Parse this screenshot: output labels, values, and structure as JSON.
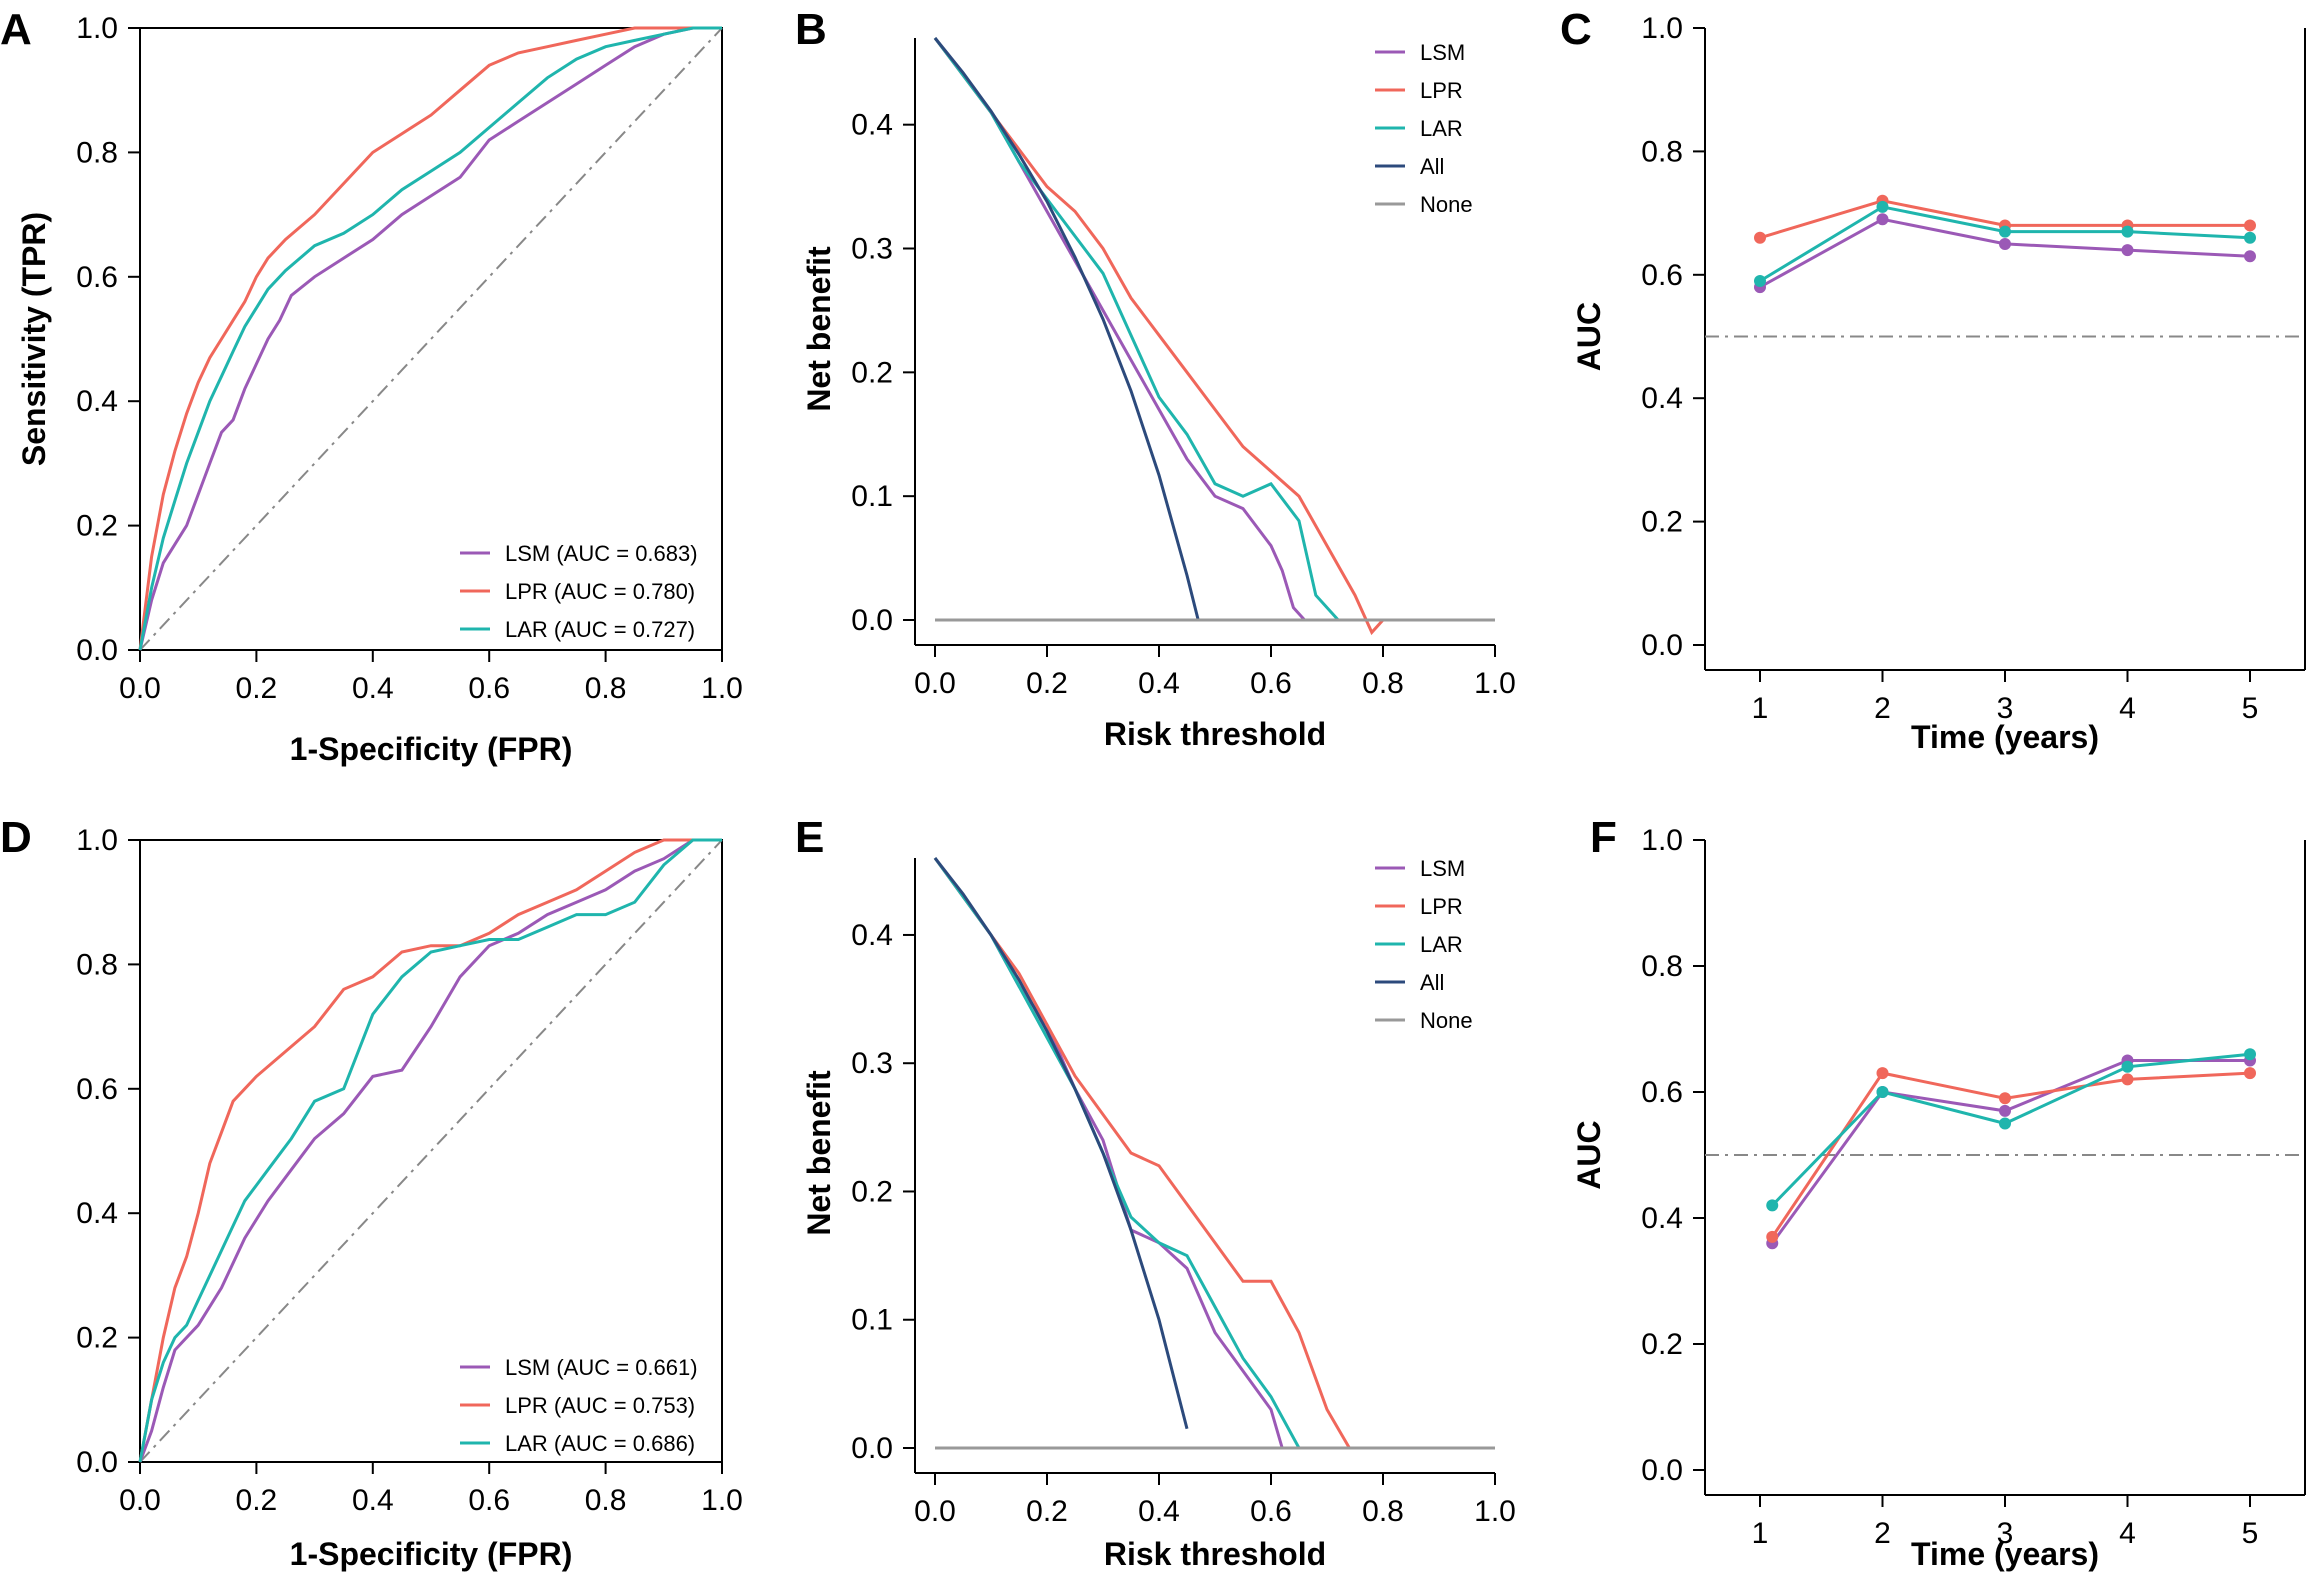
{
  "colors": {
    "LSM": "#9b59b6",
    "LPR": "#f0675b",
    "LAR": "#1fb5ad",
    "All": "#2c4a7c",
    "None": "#999999",
    "reference": "#888888"
  },
  "chart_data": [
    {
      "panel": "A",
      "type": "line",
      "subtype": "roc",
      "xlabel": "1-Specificity (FPR)",
      "ylabel": "Sensitivity (TPR)",
      "xlim": [
        0,
        1
      ],
      "ylim": [
        0,
        1
      ],
      "xticks": [
        "0.0",
        "0.2",
        "0.4",
        "0.6",
        "0.8",
        "1.0"
      ],
      "yticks": [
        "0.0",
        "0.2",
        "0.4",
        "0.6",
        "0.8",
        "1.0"
      ],
      "legend_position": "bottom-right",
      "reference_line": "diagonal",
      "series": [
        {
          "key": "LSM",
          "name": "LSM (AUC = 0.683)",
          "x": [
            0,
            0.02,
            0.04,
            0.06,
            0.08,
            0.1,
            0.12,
            0.14,
            0.16,
            0.18,
            0.2,
            0.22,
            0.24,
            0.26,
            0.3,
            0.35,
            0.4,
            0.45,
            0.5,
            0.55,
            0.6,
            0.65,
            0.7,
            0.75,
            0.8,
            0.85,
            0.9,
            0.95,
            1.0
          ],
          "y": [
            0,
            0.08,
            0.14,
            0.17,
            0.2,
            0.25,
            0.3,
            0.35,
            0.37,
            0.42,
            0.46,
            0.5,
            0.53,
            0.57,
            0.6,
            0.63,
            0.66,
            0.7,
            0.73,
            0.76,
            0.82,
            0.85,
            0.88,
            0.91,
            0.94,
            0.97,
            0.99,
            1.0,
            1.0
          ]
        },
        {
          "key": "LPR",
          "name": "LPR (AUC = 0.780)",
          "x": [
            0,
            0.02,
            0.04,
            0.06,
            0.08,
            0.1,
            0.12,
            0.14,
            0.16,
            0.18,
            0.2,
            0.22,
            0.25,
            0.3,
            0.35,
            0.4,
            0.45,
            0.5,
            0.55,
            0.6,
            0.65,
            0.7,
            0.75,
            0.8,
            0.85,
            0.9,
            0.95,
            1.0
          ],
          "y": [
            0,
            0.15,
            0.25,
            0.32,
            0.38,
            0.43,
            0.47,
            0.5,
            0.53,
            0.56,
            0.6,
            0.63,
            0.66,
            0.7,
            0.75,
            0.8,
            0.83,
            0.86,
            0.9,
            0.94,
            0.96,
            0.97,
            0.98,
            0.99,
            1.0,
            1.0,
            1.0,
            1.0
          ]
        },
        {
          "key": "LAR",
          "name": "LAR (AUC = 0.727)",
          "x": [
            0,
            0.02,
            0.04,
            0.06,
            0.08,
            0.1,
            0.12,
            0.14,
            0.16,
            0.18,
            0.2,
            0.22,
            0.25,
            0.3,
            0.35,
            0.4,
            0.45,
            0.5,
            0.55,
            0.6,
            0.65,
            0.7,
            0.75,
            0.8,
            0.85,
            0.9,
            0.95,
            1.0
          ],
          "y": [
            0,
            0.1,
            0.18,
            0.24,
            0.3,
            0.35,
            0.4,
            0.44,
            0.48,
            0.52,
            0.55,
            0.58,
            0.61,
            0.65,
            0.67,
            0.7,
            0.74,
            0.77,
            0.8,
            0.84,
            0.88,
            0.92,
            0.95,
            0.97,
            0.98,
            0.99,
            1.0,
            1.0
          ]
        }
      ]
    },
    {
      "panel": "B",
      "type": "line",
      "subtype": "decision-curve",
      "xlabel": "Risk threshold",
      "ylabel": "Net benefit",
      "xlim": [
        0,
        1
      ],
      "ylim": [
        0,
        0.47
      ],
      "xticks": [
        "0.0",
        "0.2",
        "0.4",
        "0.6",
        "0.8",
        "1.0"
      ],
      "yticks": [
        "0.0",
        "0.1",
        "0.2",
        "0.3",
        "0.4"
      ],
      "legend_position": "top-right",
      "series": [
        {
          "key": "LSM",
          "name": "LSM",
          "x": [
            0,
            0.05,
            0.1,
            0.15,
            0.2,
            0.25,
            0.3,
            0.35,
            0.4,
            0.45,
            0.5,
            0.55,
            0.6,
            0.62,
            0.64,
            0.66
          ],
          "y": [
            0.47,
            0.44,
            0.41,
            0.37,
            0.33,
            0.29,
            0.25,
            0.21,
            0.17,
            0.13,
            0.1,
            0.09,
            0.06,
            0.04,
            0.01,
            0.0
          ]
        },
        {
          "key": "LPR",
          "name": "LPR",
          "x": [
            0,
            0.05,
            0.1,
            0.15,
            0.2,
            0.25,
            0.3,
            0.35,
            0.4,
            0.45,
            0.5,
            0.55,
            0.6,
            0.65,
            0.7,
            0.75,
            0.78,
            0.8
          ],
          "y": [
            0.47,
            0.44,
            0.41,
            0.38,
            0.35,
            0.33,
            0.3,
            0.26,
            0.23,
            0.2,
            0.17,
            0.14,
            0.12,
            0.1,
            0.06,
            0.02,
            -0.01,
            0.0
          ]
        },
        {
          "key": "LAR",
          "name": "LAR",
          "x": [
            0,
            0.05,
            0.1,
            0.15,
            0.2,
            0.25,
            0.3,
            0.35,
            0.4,
            0.45,
            0.5,
            0.55,
            0.6,
            0.65,
            0.68,
            0.72
          ],
          "y": [
            0.47,
            0.44,
            0.41,
            0.37,
            0.34,
            0.31,
            0.28,
            0.23,
            0.18,
            0.15,
            0.11,
            0.1,
            0.11,
            0.08,
            0.02,
            0.0
          ]
        },
        {
          "key": "All",
          "name": "All",
          "x": [
            0,
            0.05,
            0.1,
            0.15,
            0.2,
            0.25,
            0.3,
            0.35,
            0.4,
            0.45,
            0.47
          ],
          "y": [
            0.47,
            0.442,
            0.411,
            0.376,
            0.338,
            0.293,
            0.243,
            0.185,
            0.117,
            0.036,
            0.0
          ]
        },
        {
          "key": "None",
          "name": "None",
          "x": [
            0,
            1
          ],
          "y": [
            0,
            0
          ]
        }
      ]
    },
    {
      "panel": "C",
      "type": "line",
      "subtype": "time-dependent-auc",
      "xlabel": "Time (years)",
      "ylabel": "AUC",
      "xlim": [
        0.5,
        5.5
      ],
      "ylim": [
        0,
        1
      ],
      "xticks": [
        "1",
        "2",
        "3",
        "4",
        "5"
      ],
      "yticks": [
        "0.0",
        "0.2",
        "0.4",
        "0.6",
        "0.8",
        "1.0"
      ],
      "reference_line": 0.5,
      "series": [
        {
          "key": "LSM",
          "x": [
            1,
            2,
            3,
            4,
            5
          ],
          "y": [
            0.58,
            0.69,
            0.65,
            0.64,
            0.63
          ]
        },
        {
          "key": "LPR",
          "x": [
            1,
            2,
            3,
            4,
            5
          ],
          "y": [
            0.66,
            0.72,
            0.68,
            0.68,
            0.68
          ]
        },
        {
          "key": "LAR",
          "x": [
            1,
            2,
            3,
            4,
            5
          ],
          "y": [
            0.59,
            0.71,
            0.67,
            0.67,
            0.66
          ]
        }
      ]
    },
    {
      "panel": "D",
      "type": "line",
      "subtype": "roc",
      "xlabel": "1-Specificity (FPR)",
      "ylabel": "",
      "xlim": [
        0,
        1
      ],
      "ylim": [
        0,
        1
      ],
      "xticks": [
        "0.0",
        "0.2",
        "0.4",
        "0.6",
        "0.8",
        "1.0"
      ],
      "yticks": [
        "0.0",
        "0.2",
        "0.4",
        "0.6",
        "0.8",
        "1.0"
      ],
      "legend_position": "bottom-right",
      "reference_line": "diagonal",
      "series": [
        {
          "key": "LSM",
          "name": "LSM (AUC = 0.661)",
          "x": [
            0,
            0.02,
            0.04,
            0.06,
            0.1,
            0.14,
            0.18,
            0.22,
            0.26,
            0.3,
            0.35,
            0.4,
            0.45,
            0.5,
            0.55,
            0.6,
            0.65,
            0.7,
            0.75,
            0.8,
            0.85,
            0.9,
            0.95,
            1.0
          ],
          "y": [
            0,
            0.05,
            0.12,
            0.18,
            0.22,
            0.28,
            0.36,
            0.42,
            0.47,
            0.52,
            0.56,
            0.62,
            0.63,
            0.7,
            0.78,
            0.83,
            0.85,
            0.88,
            0.9,
            0.92,
            0.95,
            0.97,
            1.0,
            1.0
          ]
        },
        {
          "key": "LPR",
          "name": "LPR (AUC = 0.753)",
          "x": [
            0,
            0.02,
            0.04,
            0.06,
            0.08,
            0.1,
            0.12,
            0.14,
            0.16,
            0.2,
            0.25,
            0.3,
            0.35,
            0.4,
            0.45,
            0.5,
            0.55,
            0.6,
            0.65,
            0.7,
            0.75,
            0.8,
            0.85,
            0.9,
            1.0
          ],
          "y": [
            0,
            0.1,
            0.2,
            0.28,
            0.33,
            0.4,
            0.48,
            0.53,
            0.58,
            0.62,
            0.66,
            0.7,
            0.76,
            0.78,
            0.82,
            0.83,
            0.83,
            0.85,
            0.88,
            0.9,
            0.92,
            0.95,
            0.98,
            1.0,
            1.0
          ]
        },
        {
          "key": "LAR",
          "name": "LAR (AUC = 0.686)",
          "x": [
            0,
            0.02,
            0.04,
            0.06,
            0.08,
            0.1,
            0.14,
            0.18,
            0.22,
            0.26,
            0.3,
            0.35,
            0.4,
            0.45,
            0.5,
            0.55,
            0.6,
            0.65,
            0.7,
            0.75,
            0.8,
            0.85,
            0.9,
            0.95,
            1.0
          ],
          "y": [
            0,
            0.1,
            0.16,
            0.2,
            0.22,
            0.26,
            0.34,
            0.42,
            0.47,
            0.52,
            0.58,
            0.6,
            0.72,
            0.78,
            0.82,
            0.83,
            0.84,
            0.84,
            0.86,
            0.88,
            0.88,
            0.9,
            0.96,
            1.0,
            1.0
          ]
        }
      ]
    },
    {
      "panel": "E",
      "type": "line",
      "subtype": "decision-curve",
      "xlabel": "Risk threshold",
      "ylabel": "Net benefit",
      "xlim": [
        0,
        1
      ],
      "ylim": [
        0,
        0.46
      ],
      "xticks": [
        "0.0",
        "0.2",
        "0.4",
        "0.6",
        "0.8",
        "1.0"
      ],
      "yticks": [
        "0.0",
        "0.1",
        "0.2",
        "0.3",
        "0.4"
      ],
      "legend_position": "top-right",
      "series": [
        {
          "key": "LSM",
          "name": "LSM",
          "x": [
            0,
            0.05,
            0.1,
            0.15,
            0.2,
            0.25,
            0.3,
            0.35,
            0.4,
            0.45,
            0.5,
            0.55,
            0.6,
            0.62
          ],
          "y": [
            0.46,
            0.43,
            0.4,
            0.36,
            0.33,
            0.28,
            0.24,
            0.17,
            0.16,
            0.14,
            0.09,
            0.06,
            0.03,
            0.0
          ]
        },
        {
          "key": "LPR",
          "name": "LPR",
          "x": [
            0,
            0.05,
            0.1,
            0.15,
            0.2,
            0.25,
            0.3,
            0.35,
            0.4,
            0.45,
            0.5,
            0.55,
            0.6,
            0.65,
            0.7,
            0.74
          ],
          "y": [
            0.46,
            0.43,
            0.4,
            0.37,
            0.33,
            0.29,
            0.26,
            0.23,
            0.22,
            0.19,
            0.16,
            0.13,
            0.13,
            0.09,
            0.03,
            0.0
          ]
        },
        {
          "key": "LAR",
          "name": "LAR",
          "x": [
            0,
            0.05,
            0.1,
            0.15,
            0.2,
            0.25,
            0.3,
            0.35,
            0.4,
            0.45,
            0.5,
            0.55,
            0.6,
            0.65
          ],
          "y": [
            0.46,
            0.43,
            0.4,
            0.36,
            0.32,
            0.28,
            0.23,
            0.18,
            0.16,
            0.15,
            0.11,
            0.07,
            0.04,
            0.0
          ]
        },
        {
          "key": "All",
          "name": "All",
          "x": [
            0,
            0.05,
            0.1,
            0.15,
            0.2,
            0.25,
            0.3,
            0.35,
            0.4,
            0.45
          ],
          "y": [
            0.46,
            0.432,
            0.4,
            0.365,
            0.325,
            0.28,
            0.23,
            0.17,
            0.1,
            0.015
          ]
        },
        {
          "key": "None",
          "name": "None",
          "x": [
            0,
            1
          ],
          "y": [
            0,
            0
          ]
        }
      ]
    },
    {
      "panel": "F",
      "type": "line",
      "subtype": "time-dependent-auc",
      "xlabel": "Time (years)",
      "ylabel": "AUC",
      "xlim": [
        0.5,
        5.5
      ],
      "ylim": [
        0,
        1
      ],
      "xticks": [
        "1",
        "2",
        "3",
        "4",
        "5"
      ],
      "yticks": [
        "0.0",
        "0.2",
        "0.4",
        "0.6",
        "0.8",
        "1.0"
      ],
      "reference_line": 0.5,
      "series": [
        {
          "key": "LSM",
          "x": [
            1.1,
            2,
            3,
            4,
            5
          ],
          "y": [
            0.36,
            0.6,
            0.57,
            0.65,
            0.65
          ]
        },
        {
          "key": "LPR",
          "x": [
            1.1,
            2,
            3,
            4,
            5
          ],
          "y": [
            0.37,
            0.63,
            0.59,
            0.62,
            0.63
          ]
        },
        {
          "key": "LAR",
          "x": [
            1.1,
            2,
            3,
            4,
            5
          ],
          "y": [
            0.42,
            0.6,
            0.55,
            0.64,
            0.66
          ]
        }
      ]
    }
  ]
}
